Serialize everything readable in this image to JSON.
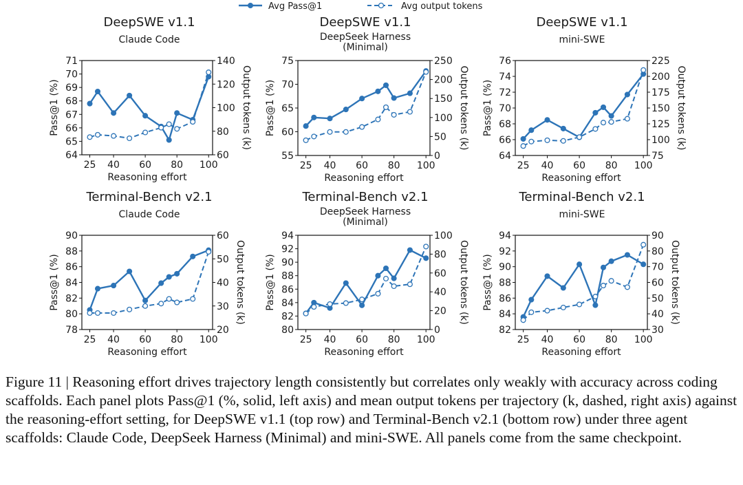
{
  "legend": {
    "solid": "Avg Pass@1",
    "dashed": "Avg output tokens"
  },
  "colors": {
    "line": "#2d74b7",
    "axis": "#111111"
  },
  "caption": "Figure 11 | Reasoning effort drives trajectory length consistently but correlates only weakly with accuracy across coding scaffolds. Each panel plots Pass@1 (%, solid, left axis) and mean output tokens per trajectory (k, dashed, right axis) against the reasoning-effort setting, for DeepSWE v1.1 (top row) and Terminal-Bench v2.1 (bottom row) under three agent scaffolds: Claude Code, DeepSeek Harness (Minimal) and mini-SWE. All panels come from the same checkpoint.",
  "chart_data": [
    {
      "type": "line",
      "title": "DeepSWE v1.1",
      "subtitle": [
        "Claude Code"
      ],
      "xlabel": "Reasoning effort",
      "ylabel": "Pass@1 (%)",
      "y2label": "Output tokens (k)",
      "x": [
        25,
        30,
        40,
        50,
        60,
        70,
        75,
        80,
        90,
        100
      ],
      "xticks": [
        25,
        40,
        60,
        80,
        100
      ],
      "ylim": [
        64,
        71
      ],
      "yticks": [
        64,
        65,
        66,
        67,
        68,
        69,
        70,
        71
      ],
      "y2lim": [
        60,
        140
      ],
      "y2ticks": [
        60,
        80,
        100,
        120,
        140
      ],
      "series": [
        {
          "name": "Avg Pass@1",
          "axis": "left",
          "style": "solid",
          "values": [
            67.8,
            68.7,
            67.1,
            68.4,
            66.9,
            66.1,
            65.1,
            67.1,
            66.6,
            69.8
          ]
        },
        {
          "name": "Avg output tokens",
          "axis": "right",
          "style": "dashed",
          "values": [
            75,
            77,
            76,
            74,
            79,
            83,
            86,
            82,
            88,
            130
          ]
        }
      ]
    },
    {
      "type": "line",
      "title": "DeepSWE v1.1",
      "subtitle": [
        "DeepSeek Harness",
        "(Minimal)"
      ],
      "xlabel": "Reasoning effort",
      "ylabel": "Pass@1 (%)",
      "y2label": "Output tokens (k)",
      "x": [
        25,
        30,
        40,
        50,
        60,
        70,
        75,
        80,
        90,
        100
      ],
      "xticks": [
        25,
        40,
        60,
        80,
        100
      ],
      "ylim": [
        55,
        75
      ],
      "yticks": [
        55,
        60,
        65,
        70,
        75
      ],
      "y2lim": [
        0,
        250
      ],
      "y2ticks": [
        0,
        50,
        100,
        150,
        200,
        250
      ],
      "series": [
        {
          "name": "Avg Pass@1",
          "axis": "left",
          "style": "solid",
          "values": [
            61.2,
            63.0,
            62.8,
            64.7,
            67.0,
            68.5,
            69.8,
            67.1,
            68.1,
            72.8
          ]
        },
        {
          "name": "Avg output tokens",
          "axis": "right",
          "style": "dashed",
          "values": [
            40,
            50,
            62,
            62,
            75,
            95,
            127,
            107,
            115,
            220
          ]
        }
      ]
    },
    {
      "type": "line",
      "title": "DeepSWE v1.1",
      "subtitle": [
        "mini-SWE"
      ],
      "xlabel": "Reasoning effort",
      "ylabel": "Pass@1 (%)",
      "y2label": "Output tokens (k)",
      "x": [
        25,
        30,
        40,
        50,
        60,
        70,
        75,
        80,
        90,
        100
      ],
      "xticks": [
        25,
        40,
        60,
        80,
        100
      ],
      "ylim": [
        64,
        76
      ],
      "yticks": [
        64,
        66,
        68,
        70,
        72,
        74,
        76
      ],
      "y2lim": [
        75,
        225
      ],
      "y2ticks": [
        75,
        100,
        125,
        150,
        175,
        200,
        225
      ],
      "series": [
        {
          "name": "Avg Pass@1",
          "axis": "left",
          "style": "solid",
          "values": [
            66.1,
            67.2,
            68.5,
            67.4,
            66.3,
            69.4,
            70.1,
            69.0,
            71.7,
            74.3
          ]
        },
        {
          "name": "Avg output tokens",
          "axis": "right",
          "style": "dashed",
          "values": [
            90,
            97,
            99,
            98,
            104,
            117,
            127,
            128,
            133,
            210
          ]
        }
      ]
    },
    {
      "type": "line",
      "title": "Terminal-Bench v2.1",
      "subtitle": [
        "Claude Code"
      ],
      "xlabel": "Reasoning effort",
      "ylabel": "Pass@1 (%)",
      "y2label": "Output tokens (k)",
      "x": [
        25,
        30,
        40,
        50,
        60,
        70,
        75,
        80,
        90,
        100
      ],
      "xticks": [
        25,
        40,
        60,
        80,
        100
      ],
      "ylim": [
        78,
        90
      ],
      "yticks": [
        78,
        80,
        82,
        84,
        86,
        88,
        90
      ],
      "y2lim": [
        20,
        60
      ],
      "y2ticks": [
        20,
        30,
        40,
        50,
        60
      ],
      "series": [
        {
          "name": "Avg Pass@1",
          "axis": "left",
          "style": "solid",
          "values": [
            80.5,
            83.2,
            83.6,
            85.4,
            81.7,
            83.9,
            84.7,
            85.1,
            87.3,
            88.1
          ]
        },
        {
          "name": "Avg output tokens",
          "axis": "right",
          "style": "dashed",
          "values": [
            27,
            27,
            27,
            28.5,
            30,
            31,
            33,
            31.5,
            33,
            53
          ]
        }
      ]
    },
    {
      "type": "line",
      "title": "Terminal-Bench v2.1",
      "subtitle": [
        "DeepSeek Harness",
        "(Minimal)"
      ],
      "xlabel": "Reasoning effort",
      "ylabel": "Pass@1 (%)",
      "y2label": "Output tokens (k)",
      "x": [
        25,
        30,
        40,
        50,
        60,
        70,
        75,
        80,
        90,
        100
      ],
      "xticks": [
        25,
        40,
        60,
        80,
        100
      ],
      "ylim": [
        80,
        94
      ],
      "yticks": [
        80,
        82,
        84,
        86,
        88,
        90,
        92,
        94
      ],
      "y2lim": [
        0,
        100
      ],
      "y2ticks": [
        0,
        20,
        40,
        60,
        80,
        100
      ],
      "series": [
        {
          "name": "Avg Pass@1",
          "axis": "left",
          "style": "solid",
          "values": [
            82.4,
            84.0,
            83.2,
            86.9,
            83.6,
            88.0,
            89.1,
            87.6,
            91.8,
            90.6
          ]
        },
        {
          "name": "Avg output tokens",
          "axis": "right",
          "style": "dashed",
          "values": [
            17,
            24,
            27,
            28,
            32,
            38,
            54,
            46,
            48,
            88
          ]
        }
      ]
    },
    {
      "type": "line",
      "title": "Terminal-Bench v2.1",
      "subtitle": [
        "mini-SWE"
      ],
      "xlabel": "Reasoning effort",
      "ylabel": "Pass@1 (%)",
      "y2label": "Output tokens (k)",
      "x": [
        25,
        30,
        40,
        50,
        60,
        70,
        75,
        80,
        90,
        100
      ],
      "xticks": [
        25,
        40,
        60,
        80,
        100
      ],
      "ylim": [
        82,
        94
      ],
      "yticks": [
        82,
        84,
        86,
        88,
        90,
        92,
        94
      ],
      "y2lim": [
        30,
        90
      ],
      "y2ticks": [
        30,
        40,
        50,
        60,
        70,
        80,
        90
      ],
      "series": [
        {
          "name": "Avg Pass@1",
          "axis": "left",
          "style": "solid",
          "values": [
            83.6,
            85.8,
            88.8,
            87.3,
            90.3,
            85.1,
            89.9,
            90.7,
            91.5,
            90.3
          ]
        },
        {
          "name": "Avg output tokens",
          "axis": "right",
          "style": "dashed",
          "values": [
            36,
            41,
            42,
            44,
            46,
            51,
            58,
            61,
            57,
            84
          ]
        }
      ]
    }
  ]
}
